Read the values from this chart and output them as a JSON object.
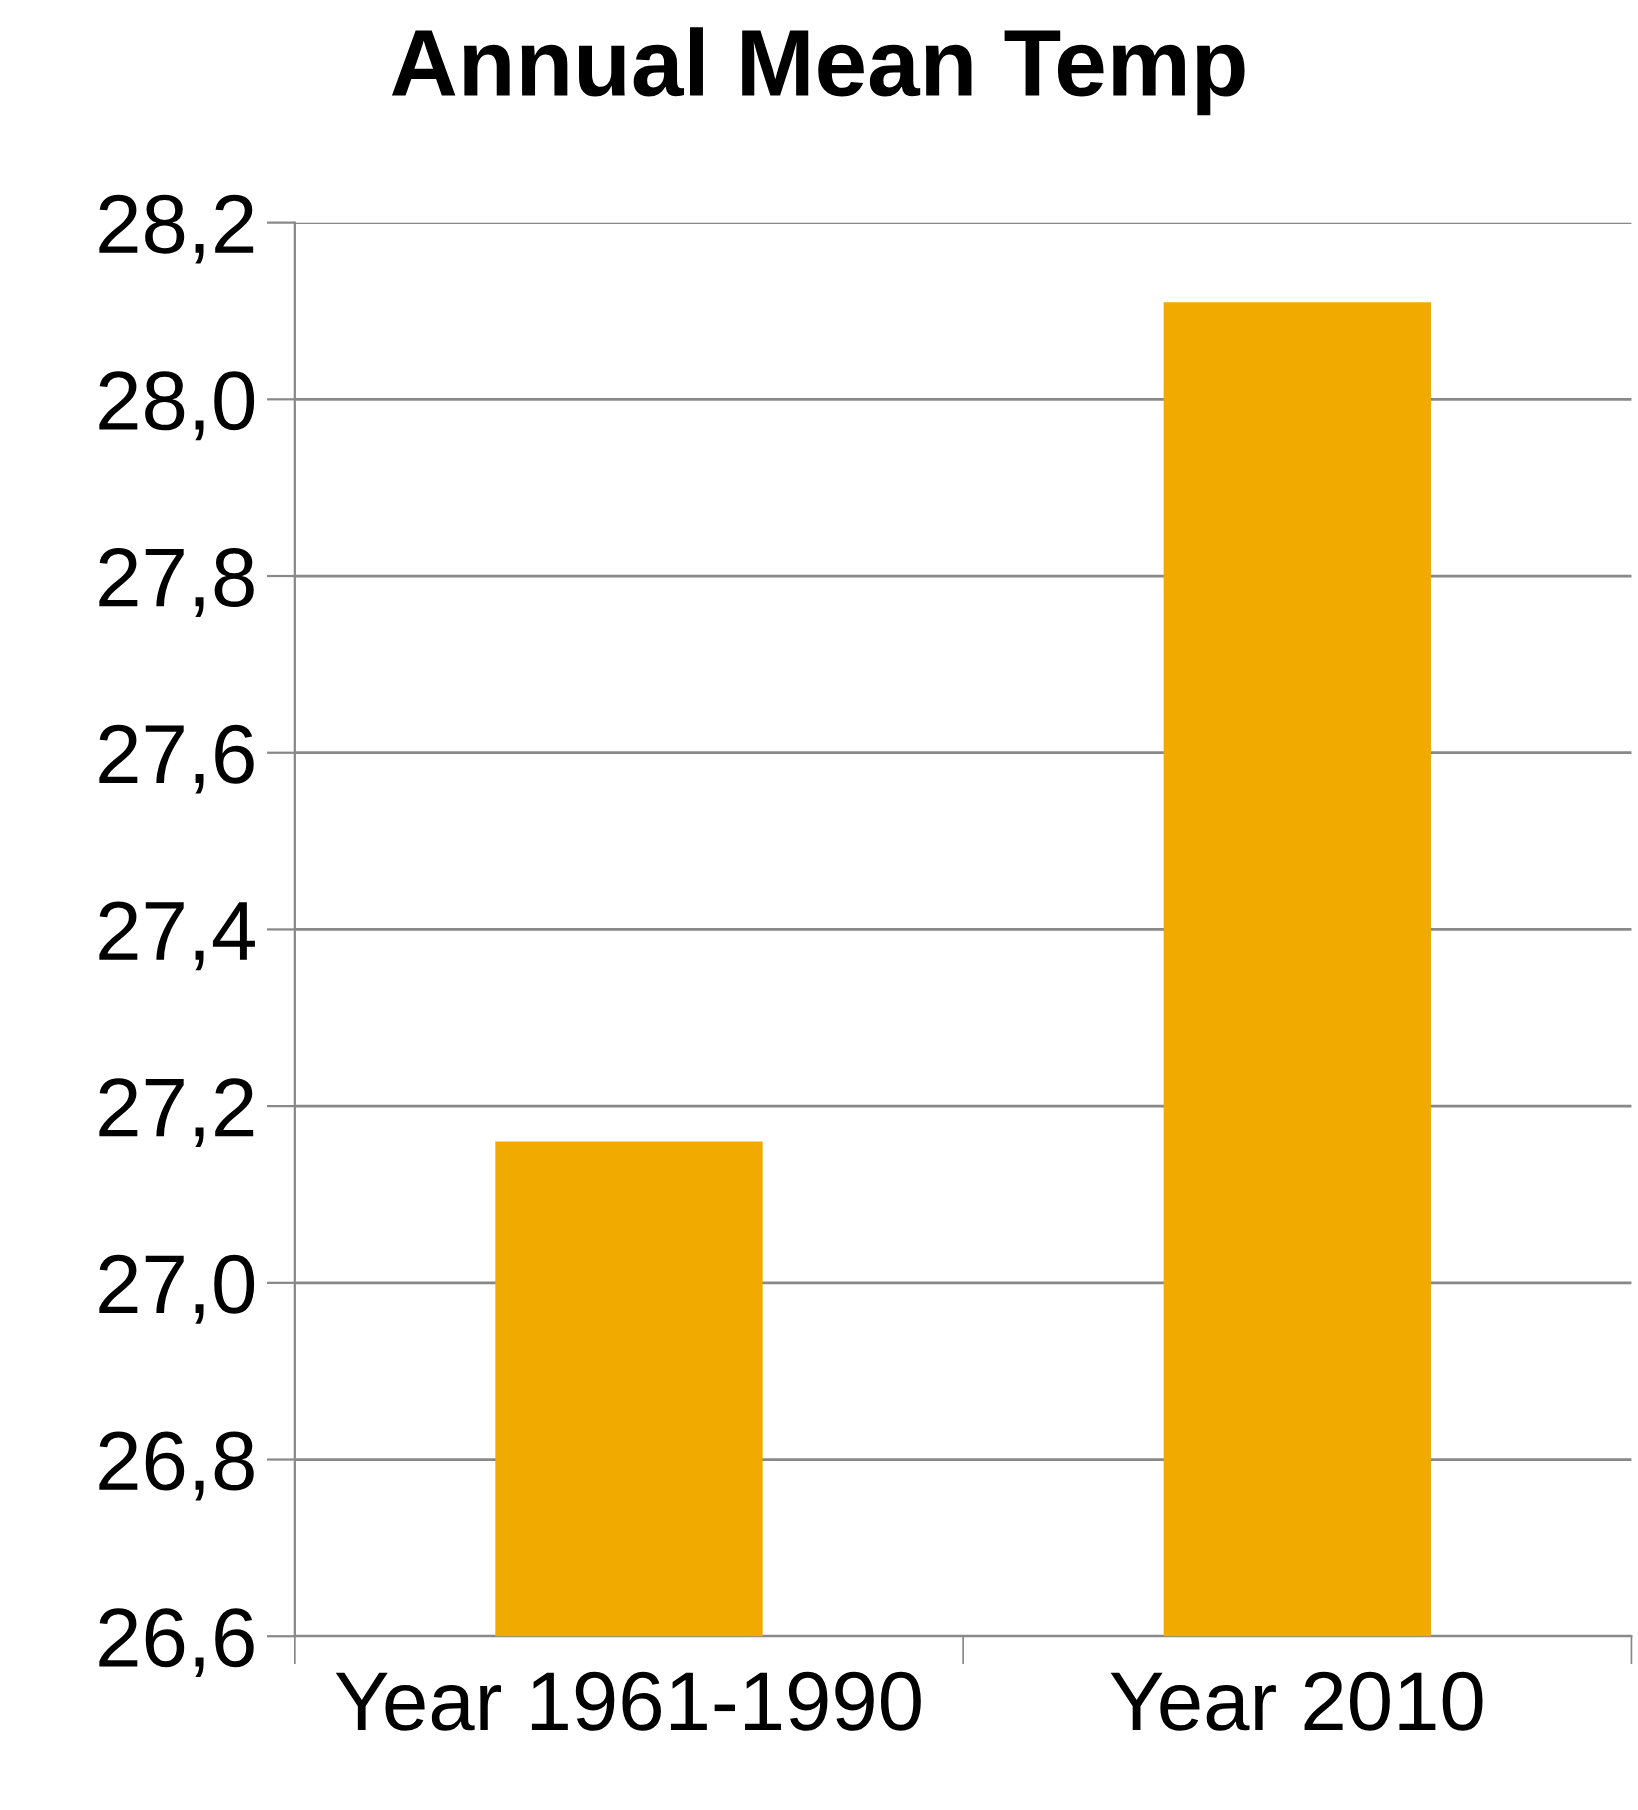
{
  "chart_data": {
    "type": "bar",
    "title": "Annual Mean Temp",
    "categories": [
      "Year 1961-1990",
      "Year 2010"
    ],
    "values": [
      27.16,
      28.11
    ],
    "color": "#f0aa00",
    "ylim": [
      26.6,
      28.2
    ],
    "yticks": [
      {
        "value": 26.6,
        "label": "26,6"
      },
      {
        "value": 26.8,
        "label": "26,8"
      },
      {
        "value": 27.0,
        "label": "27,0"
      },
      {
        "value": 27.2,
        "label": "27,2"
      },
      {
        "value": 27.4,
        "label": "27,4"
      },
      {
        "value": 27.6,
        "label": "27,6"
      },
      {
        "value": 27.8,
        "label": "27,8"
      },
      {
        "value": 28.0,
        "label": "28,0"
      },
      {
        "value": 28.2,
        "label": "28,2"
      }
    ],
    "grid": "y",
    "legend": false
  }
}
